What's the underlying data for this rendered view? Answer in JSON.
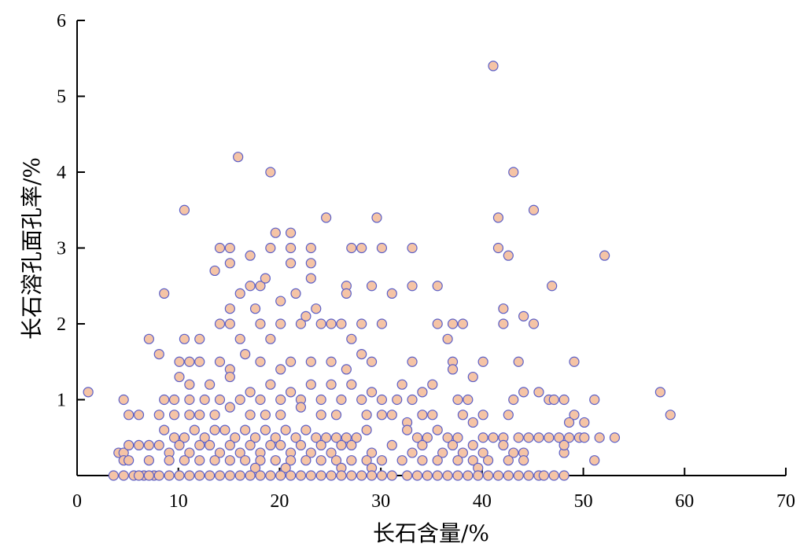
{
  "chart_data": {
    "type": "scatter",
    "title": "",
    "xlabel": "长石含量/%",
    "ylabel": "长石溶孔面孔率/%",
    "xlim": [
      0,
      70
    ],
    "ylim": [
      0,
      6
    ],
    "xticks": [
      0,
      10,
      20,
      30,
      40,
      50,
      60,
      70
    ],
    "yticks": [
      1,
      2,
      3,
      4,
      5,
      6
    ],
    "x_tick_labels": [
      "0",
      "10",
      "20",
      "30",
      "40",
      "50",
      "60",
      "70"
    ],
    "y_tick_labels": [
      "1",
      "2",
      "3",
      "4",
      "5",
      "6"
    ],
    "grid": false,
    "legend": "none",
    "marker_fill": "#f5c4a6",
    "marker_edge": "#5b5fc7",
    "series": [
      {
        "points": [
          [
            41.1,
            5.4
          ],
          [
            15.9,
            4.2
          ],
          [
            19.1,
            4.0
          ],
          [
            43.1,
            4.0
          ],
          [
            10.6,
            3.5
          ],
          [
            45.1,
            3.5
          ],
          [
            24.6,
            3.4
          ],
          [
            29.6,
            3.4
          ],
          [
            41.6,
            3.4
          ],
          [
            19.6,
            3.2
          ],
          [
            21.1,
            3.2
          ],
          [
            52.1,
            2.9
          ],
          [
            14.1,
            3.0
          ],
          [
            15.1,
            3.0
          ],
          [
            17.1,
            2.9
          ],
          [
            19.1,
            3.0
          ],
          [
            21.1,
            3.0
          ],
          [
            23.1,
            3.0
          ],
          [
            27.1,
            3.0
          ],
          [
            28.1,
            3.0
          ],
          [
            30.1,
            3.0
          ],
          [
            33.1,
            3.0
          ],
          [
            41.6,
            3.0
          ],
          [
            42.6,
            2.9
          ],
          [
            13.6,
            2.7
          ],
          [
            15.1,
            2.8
          ],
          [
            21.1,
            2.8
          ],
          [
            23.1,
            2.8
          ],
          [
            46.9,
            2.5
          ],
          [
            23.1,
            2.6
          ],
          [
            8.6,
            2.4
          ],
          [
            17.1,
            2.5
          ],
          [
            18.1,
            2.5
          ],
          [
            26.6,
            2.5
          ],
          [
            29.1,
            2.5
          ],
          [
            33.1,
            2.5
          ],
          [
            35.6,
            2.5
          ],
          [
            16.1,
            2.4
          ],
          [
            18.6,
            2.6
          ],
          [
            20.1,
            2.3
          ],
          [
            21.6,
            2.4
          ],
          [
            31.1,
            2.4
          ],
          [
            26.6,
            2.4
          ],
          [
            15.1,
            2.2
          ],
          [
            23.6,
            2.2
          ],
          [
            42.1,
            2.2
          ],
          [
            17.6,
            2.2
          ],
          [
            7.1,
            1.8
          ],
          [
            8.1,
            1.6
          ],
          [
            10.6,
            1.8
          ],
          [
            12.1,
            1.8
          ],
          [
            14.1,
            2.0
          ],
          [
            15.1,
            2.0
          ],
          [
            16.1,
            1.8
          ],
          [
            18.1,
            2.0
          ],
          [
            19.1,
            1.8
          ],
          [
            20.1,
            2.0
          ],
          [
            22.1,
            2.0
          ],
          [
            24.1,
            2.0
          ],
          [
            25.1,
            2.0
          ],
          [
            26.1,
            2.0
          ],
          [
            28.1,
            2.0
          ],
          [
            30.1,
            2.0
          ],
          [
            35.6,
            2.0
          ],
          [
            37.1,
            2.0
          ],
          [
            38.1,
            2.0
          ],
          [
            42.1,
            2.0
          ],
          [
            44.1,
            2.1
          ],
          [
            45.1,
            2.0
          ],
          [
            36.6,
            1.8
          ],
          [
            27.1,
            1.8
          ],
          [
            22.6,
            2.1
          ],
          [
            10.1,
            1.5
          ],
          [
            11.1,
            1.5
          ],
          [
            12.1,
            1.5
          ],
          [
            14.1,
            1.5
          ],
          [
            15.1,
            1.4
          ],
          [
            16.6,
            1.6
          ],
          [
            18.1,
            1.5
          ],
          [
            20.1,
            1.4
          ],
          [
            21.1,
            1.5
          ],
          [
            23.1,
            1.5
          ],
          [
            25.1,
            1.5
          ],
          [
            26.6,
            1.4
          ],
          [
            28.1,
            1.6
          ],
          [
            29.1,
            1.5
          ],
          [
            33.1,
            1.5
          ],
          [
            37.1,
            1.5
          ],
          [
            40.1,
            1.5
          ],
          [
            43.6,
            1.5
          ],
          [
            49.1,
            1.5
          ],
          [
            37.1,
            1.4
          ],
          [
            1.1,
            1.1
          ],
          [
            10.1,
            1.3
          ],
          [
            11.1,
            1.2
          ],
          [
            13.1,
            1.2
          ],
          [
            15.1,
            1.3
          ],
          [
            17.1,
            1.1
          ],
          [
            19.1,
            1.2
          ],
          [
            21.1,
            1.1
          ],
          [
            23.1,
            1.2
          ],
          [
            25.1,
            1.2
          ],
          [
            27.1,
            1.2
          ],
          [
            29.1,
            1.1
          ],
          [
            32.1,
            1.2
          ],
          [
            34.1,
            1.1
          ],
          [
            35.1,
            1.2
          ],
          [
            39.1,
            1.3
          ],
          [
            44.1,
            1.1
          ],
          [
            45.6,
            1.1
          ],
          [
            57.6,
            1.1
          ],
          [
            4.6,
            1.0
          ],
          [
            8.6,
            1.0
          ],
          [
            9.6,
            1.0
          ],
          [
            11.1,
            1.0
          ],
          [
            12.6,
            1.0
          ],
          [
            14.1,
            1.0
          ],
          [
            16.1,
            1.0
          ],
          [
            18.1,
            1.0
          ],
          [
            20.1,
            1.0
          ],
          [
            22.1,
            1.0
          ],
          [
            24.1,
            1.0
          ],
          [
            26.1,
            1.0
          ],
          [
            28.1,
            1.0
          ],
          [
            30.1,
            1.0
          ],
          [
            31.6,
            1.0
          ],
          [
            33.1,
            1.0
          ],
          [
            37.6,
            1.0
          ],
          [
            38.6,
            1.0
          ],
          [
            43.1,
            1.0
          ],
          [
            46.6,
            1.0
          ],
          [
            48.1,
            1.0
          ],
          [
            51.1,
            1.0
          ],
          [
            47.1,
            1.0
          ],
          [
            5.1,
            0.8
          ],
          [
            6.1,
            0.8
          ],
          [
            8.1,
            0.8
          ],
          [
            9.6,
            0.8
          ],
          [
            11.1,
            0.8
          ],
          [
            12.1,
            0.8
          ],
          [
            13.6,
            0.8
          ],
          [
            15.1,
            0.9
          ],
          [
            17.1,
            0.8
          ],
          [
            18.6,
            0.8
          ],
          [
            20.1,
            0.8
          ],
          [
            22.1,
            0.9
          ],
          [
            24.1,
            0.8
          ],
          [
            25.6,
            0.8
          ],
          [
            28.6,
            0.8
          ],
          [
            30.1,
            0.8
          ],
          [
            31.1,
            0.8
          ],
          [
            34.1,
            0.8
          ],
          [
            35.1,
            0.8
          ],
          [
            38.1,
            0.8
          ],
          [
            40.1,
            0.8
          ],
          [
            42.6,
            0.8
          ],
          [
            49.1,
            0.8
          ],
          [
            50.1,
            0.7
          ],
          [
            58.6,
            0.8
          ],
          [
            48.6,
            0.7
          ],
          [
            32.6,
            0.7
          ],
          [
            39.1,
            0.7
          ],
          [
            8.6,
            0.6
          ],
          [
            9.6,
            0.5
          ],
          [
            10.6,
            0.5
          ],
          [
            11.6,
            0.6
          ],
          [
            12.6,
            0.5
          ],
          [
            13.6,
            0.6
          ],
          [
            14.6,
            0.6
          ],
          [
            15.6,
            0.5
          ],
          [
            16.6,
            0.6
          ],
          [
            17.6,
            0.5
          ],
          [
            18.6,
            0.6
          ],
          [
            19.6,
            0.5
          ],
          [
            20.6,
            0.6
          ],
          [
            21.6,
            0.5
          ],
          [
            22.6,
            0.6
          ],
          [
            23.6,
            0.5
          ],
          [
            24.6,
            0.5
          ],
          [
            25.6,
            0.5
          ],
          [
            26.6,
            0.5
          ],
          [
            27.6,
            0.5
          ],
          [
            28.6,
            0.6
          ],
          [
            32.6,
            0.6
          ],
          [
            33.6,
            0.5
          ],
          [
            34.6,
            0.5
          ],
          [
            35.6,
            0.6
          ],
          [
            36.6,
            0.5
          ],
          [
            37.6,
            0.5
          ],
          [
            40.1,
            0.5
          ],
          [
            41.1,
            0.5
          ],
          [
            42.1,
            0.5
          ],
          [
            43.6,
            0.5
          ],
          [
            44.6,
            0.5
          ],
          [
            45.6,
            0.5
          ],
          [
            46.6,
            0.5
          ],
          [
            47.6,
            0.5
          ],
          [
            48.6,
            0.5
          ],
          [
            49.6,
            0.5
          ],
          [
            51.6,
            0.5
          ],
          [
            53.1,
            0.5
          ],
          [
            50.1,
            0.5
          ],
          [
            4.1,
            0.3
          ],
          [
            4.6,
            0.3
          ],
          [
            5.1,
            0.4
          ],
          [
            6.1,
            0.4
          ],
          [
            7.1,
            0.4
          ],
          [
            8.1,
            0.4
          ],
          [
            9.1,
            0.3
          ],
          [
            10.1,
            0.4
          ],
          [
            11.1,
            0.3
          ],
          [
            12.1,
            0.4
          ],
          [
            13.1,
            0.4
          ],
          [
            14.1,
            0.3
          ],
          [
            15.1,
            0.4
          ],
          [
            16.1,
            0.3
          ],
          [
            17.1,
            0.4
          ],
          [
            18.1,
            0.3
          ],
          [
            19.1,
            0.4
          ],
          [
            20.1,
            0.4
          ],
          [
            21.1,
            0.3
          ],
          [
            22.1,
            0.4
          ],
          [
            23.1,
            0.3
          ],
          [
            24.1,
            0.4
          ],
          [
            25.1,
            0.3
          ],
          [
            26.1,
            0.4
          ],
          [
            27.1,
            0.4
          ],
          [
            29.1,
            0.3
          ],
          [
            31.1,
            0.4
          ],
          [
            33.1,
            0.3
          ],
          [
            34.1,
            0.4
          ],
          [
            36.1,
            0.3
          ],
          [
            37.1,
            0.4
          ],
          [
            38.1,
            0.3
          ],
          [
            39.1,
            0.4
          ],
          [
            40.1,
            0.3
          ],
          [
            42.1,
            0.4
          ],
          [
            43.1,
            0.3
          ],
          [
            44.1,
            0.3
          ],
          [
            48.1,
            0.3
          ],
          [
            48.1,
            0.4
          ],
          [
            4.6,
            0.2
          ],
          [
            5.1,
            0.2
          ],
          [
            7.1,
            0.2
          ],
          [
            9.1,
            0.2
          ],
          [
            10.6,
            0.2
          ],
          [
            12.1,
            0.2
          ],
          [
            13.6,
            0.2
          ],
          [
            15.1,
            0.2
          ],
          [
            16.6,
            0.2
          ],
          [
            18.1,
            0.2
          ],
          [
            19.6,
            0.2
          ],
          [
            21.1,
            0.2
          ],
          [
            22.6,
            0.2
          ],
          [
            24.1,
            0.2
          ],
          [
            25.6,
            0.2
          ],
          [
            27.1,
            0.2
          ],
          [
            28.6,
            0.2
          ],
          [
            30.1,
            0.2
          ],
          [
            32.1,
            0.2
          ],
          [
            34.1,
            0.2
          ],
          [
            35.6,
            0.2
          ],
          [
            37.6,
            0.2
          ],
          [
            39.1,
            0.2
          ],
          [
            40.6,
            0.2
          ],
          [
            42.6,
            0.2
          ],
          [
            44.1,
            0.2
          ],
          [
            51.1,
            0.2
          ],
          [
            17.6,
            0.1
          ],
          [
            20.6,
            0.1
          ],
          [
            26.1,
            0.1
          ],
          [
            29.1,
            0.1
          ],
          [
            39.6,
            0.1
          ],
          [
            3.6,
            0.0
          ],
          [
            4.6,
            0.0
          ],
          [
            5.6,
            0.0
          ],
          [
            6.6,
            0.0
          ],
          [
            7.6,
            0.0
          ],
          [
            8.1,
            0.0
          ],
          [
            9.1,
            0.0
          ],
          [
            10.1,
            0.0
          ],
          [
            11.1,
            0.0
          ],
          [
            12.1,
            0.0
          ],
          [
            13.1,
            0.0
          ],
          [
            14.1,
            0.0
          ],
          [
            15.1,
            0.0
          ],
          [
            16.1,
            0.0
          ],
          [
            17.1,
            0.0
          ],
          [
            18.1,
            0.0
          ],
          [
            19.1,
            0.0
          ],
          [
            20.1,
            0.0
          ],
          [
            21.1,
            0.0
          ],
          [
            22.1,
            0.0
          ],
          [
            23.1,
            0.0
          ],
          [
            24.1,
            0.0
          ],
          [
            25.1,
            0.0
          ],
          [
            26.1,
            0.0
          ],
          [
            27.1,
            0.0
          ],
          [
            28.1,
            0.0
          ],
          [
            29.1,
            0.0
          ],
          [
            30.1,
            0.0
          ],
          [
            31.1,
            0.0
          ],
          [
            32.6,
            0.0
          ],
          [
            33.6,
            0.0
          ],
          [
            34.6,
            0.0
          ],
          [
            35.6,
            0.0
          ],
          [
            36.6,
            0.0
          ],
          [
            37.6,
            0.0
          ],
          [
            38.6,
            0.0
          ],
          [
            39.6,
            0.0
          ],
          [
            40.6,
            0.0
          ],
          [
            41.6,
            0.0
          ],
          [
            42.6,
            0.0
          ],
          [
            43.6,
            0.0
          ],
          [
            44.6,
            0.0
          ],
          [
            45.6,
            0.0
          ],
          [
            47.1,
            0.0
          ],
          [
            48.1,
            0.0
          ],
          [
            6.1,
            0.0
          ],
          [
            7.1,
            0.0
          ],
          [
            46.1,
            0.0
          ]
        ]
      }
    ]
  }
}
